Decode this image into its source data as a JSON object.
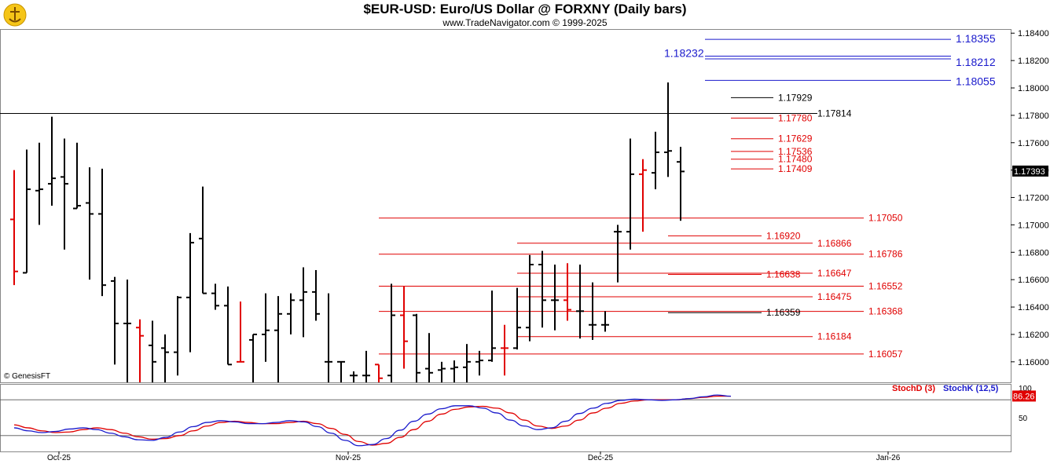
{
  "header": {
    "title": "$EUR-USD:  Euro/US Dollar @ FORXNY  (Daily bars)",
    "subtitle": "www.TradeNavigator.com © 1999-2025",
    "credit": "© GenesisFT",
    "logo_icon": "trade-navigator-logo"
  },
  "colors": {
    "bar": "#000000",
    "down_bar": "#e00000",
    "level_red": "#e00000",
    "level_blue": "#1a1acc",
    "stoch_d": "#e00000",
    "stoch_k": "#1a1acc"
  },
  "chart_data": [
    {
      "type": "ohlc",
      "title": "$EUR-USD:  Euro/US Dollar @ FORXNY  (Daily bars)",
      "ylim": [
        1.1585,
        1.1843
      ],
      "y_ticks": [
        "1.18400",
        "1.18200",
        "1.18000",
        "1.17800",
        "1.17600",
        "1.17400",
        "1.17200",
        "1.17000",
        "1.16800",
        "1.16600",
        "1.16400",
        "1.16200",
        "1.16000"
      ],
      "x_ticks": [
        "Oct-25",
        "Nov-25",
        "Dec-25",
        "Jan-26"
      ],
      "last_price": "1.17393",
      "bars": [
        {
          "o": 1.1704,
          "h": 1.174,
          "l": 1.1656,
          "c": 1.1666,
          "dir": "down"
        },
        {
          "o": 1.1665,
          "h": 1.1755,
          "l": 1.1665,
          "c": 1.1726,
          "dir": "up"
        },
        {
          "o": 1.1725,
          "h": 1.176,
          "l": 1.17,
          "c": 1.1726,
          "dir": "up"
        },
        {
          "o": 1.173,
          "h": 1.1779,
          "l": 1.1714,
          "c": 1.1734,
          "dir": "up"
        },
        {
          "o": 1.1735,
          "h": 1.1763,
          "l": 1.1682,
          "c": 1.173,
          "dir": "up"
        },
        {
          "o": 1.1712,
          "h": 1.176,
          "l": 1.1712,
          "c": 1.1714,
          "dir": "up"
        },
        {
          "o": 1.1716,
          "h": 1.1742,
          "l": 1.166,
          "c": 1.1708,
          "dir": "up"
        },
        {
          "o": 1.1708,
          "h": 1.1741,
          "l": 1.1648,
          "c": 1.1656,
          "dir": "up"
        },
        {
          "o": 1.1659,
          "h": 1.1662,
          "l": 1.1598,
          "c": 1.1628,
          "dir": "up"
        },
        {
          "o": 1.1628,
          "h": 1.166,
          "l": 1.1585,
          "c": 1.1628,
          "dir": "up"
        },
        {
          "o": 1.1625,
          "h": 1.1631,
          "l": 1.1585,
          "c": 1.1619,
          "dir": "down"
        },
        {
          "o": 1.1612,
          "h": 1.163,
          "l": 1.1585,
          "c": 1.16,
          "dir": "up"
        },
        {
          "o": 1.161,
          "h": 1.162,
          "l": 1.1585,
          "c": 1.1607,
          "dir": "up"
        },
        {
          "o": 1.1607,
          "h": 1.1648,
          "l": 1.159,
          "c": 1.1647,
          "dir": "up"
        },
        {
          "o": 1.1647,
          "h": 1.1694,
          "l": 1.1607,
          "c": 1.1687,
          "dir": "up"
        },
        {
          "o": 1.169,
          "h": 1.1728,
          "l": 1.165,
          "c": 1.165,
          "dir": "up"
        },
        {
          "o": 1.165,
          "h": 1.1657,
          "l": 1.1638,
          "c": 1.1641,
          "dir": "up"
        },
        {
          "o": 1.1641,
          "h": 1.1655,
          "l": 1.1598,
          "c": 1.1598,
          "dir": "up"
        },
        {
          "o": 1.16,
          "h": 1.1644,
          "l": 1.16,
          "c": 1.16,
          "dir": "down"
        },
        {
          "o": 1.1616,
          "h": 1.162,
          "l": 1.1585,
          "c": 1.162,
          "dir": "up"
        },
        {
          "o": 1.162,
          "h": 1.165,
          "l": 1.16,
          "c": 1.1623,
          "dir": "up"
        },
        {
          "o": 1.1623,
          "h": 1.1648,
          "l": 1.1585,
          "c": 1.1635,
          "dir": "up"
        },
        {
          "o": 1.1635,
          "h": 1.165,
          "l": 1.162,
          "c": 1.1645,
          "dir": "up"
        },
        {
          "o": 1.1645,
          "h": 1.1669,
          "l": 1.1618,
          "c": 1.1651,
          "dir": "up"
        },
        {
          "o": 1.1651,
          "h": 1.1667,
          "l": 1.163,
          "c": 1.1635,
          "dir": "up"
        },
        {
          "o": 1.16,
          "h": 1.165,
          "l": 1.1585,
          "c": 1.16,
          "dir": "up"
        },
        {
          "o": 1.16,
          "h": 1.16,
          "l": 1.1585,
          "c": 1.16,
          "dir": "up"
        },
        {
          "o": 1.159,
          "h": 1.1593,
          "l": 1.1585,
          "c": 1.159,
          "dir": "up"
        },
        {
          "o": 1.159,
          "h": 1.1608,
          "l": 1.1585,
          "c": 1.159,
          "dir": "up"
        },
        {
          "o": 1.1598,
          "h": 1.1598,
          "l": 1.1585,
          "c": 1.1588,
          "dir": "down"
        },
        {
          "o": 1.159,
          "h": 1.1657,
          "l": 1.1585,
          "c": 1.1634,
          "dir": "up"
        },
        {
          "o": 1.1634,
          "h": 1.1655,
          "l": 1.1595,
          "c": 1.1615,
          "dir": "down"
        },
        {
          "o": 1.1634,
          "h": 1.1635,
          "l": 1.1585,
          "c": 1.1592,
          "dir": "up"
        },
        {
          "o": 1.1595,
          "h": 1.1621,
          "l": 1.1585,
          "c": 1.1592,
          "dir": "up"
        },
        {
          "o": 1.1594,
          "h": 1.16,
          "l": 1.1585,
          "c": 1.1595,
          "dir": "up"
        },
        {
          "o": 1.1595,
          "h": 1.1601,
          "l": 1.1585,
          "c": 1.1596,
          "dir": "up"
        },
        {
          "o": 1.1596,
          "h": 1.1613,
          "l": 1.1585,
          "c": 1.16,
          "dir": "up"
        },
        {
          "o": 1.16,
          "h": 1.1608,
          "l": 1.159,
          "c": 1.1601,
          "dir": "up"
        },
        {
          "o": 1.1601,
          "h": 1.1652,
          "l": 1.16,
          "c": 1.161,
          "dir": "up"
        },
        {
          "o": 1.161,
          "h": 1.1627,
          "l": 1.159,
          "c": 1.161,
          "dir": "down"
        },
        {
          "o": 1.161,
          "h": 1.1654,
          "l": 1.1609,
          "c": 1.1625,
          "dir": "up"
        },
        {
          "o": 1.1625,
          "h": 1.1678,
          "l": 1.1615,
          "c": 1.1671,
          "dir": "up"
        },
        {
          "o": 1.1671,
          "h": 1.1681,
          "l": 1.1625,
          "c": 1.1645,
          "dir": "up"
        },
        {
          "o": 1.1645,
          "h": 1.1671,
          "l": 1.1623,
          "c": 1.1645,
          "dir": "up"
        },
        {
          "o": 1.1645,
          "h": 1.1672,
          "l": 1.163,
          "c": 1.1638,
          "dir": "down"
        },
        {
          "o": 1.1637,
          "h": 1.1671,
          "l": 1.1617,
          "c": 1.1637,
          "dir": "up"
        },
        {
          "o": 1.1627,
          "h": 1.1658,
          "l": 1.1616,
          "c": 1.1627,
          "dir": "up"
        },
        {
          "o": 1.1627,
          "h": 1.1637,
          "l": 1.1622,
          "c": 1.1627,
          "dir": "up"
        },
        {
          "o": 1.1695,
          "h": 1.17,
          "l": 1.1658,
          "c": 1.1695,
          "dir": "up"
        },
        {
          "o": 1.1695,
          "h": 1.1763,
          "l": 1.1682,
          "c": 1.1737,
          "dir": "up"
        },
        {
          "o": 1.1737,
          "h": 1.1748,
          "l": 1.1695,
          "c": 1.174,
          "dir": "down"
        },
        {
          "o": 1.1738,
          "h": 1.1768,
          "l": 1.1726,
          "c": 1.1753,
          "dir": "up"
        },
        {
          "o": 1.1753,
          "h": 1.1804,
          "l": 1.1735,
          "c": 1.1754,
          "dir": "up"
        },
        {
          "o": 1.1746,
          "h": 1.1757,
          "l": 1.1703,
          "c": 1.1739,
          "dir": "up"
        }
      ],
      "levels": [
        {
          "value": 1.18355,
          "label": "1.18355",
          "color": "blue"
        },
        {
          "value": 1.18232,
          "label": "1.18232",
          "color": "blue"
        },
        {
          "value": 1.18212,
          "label": "1.18212",
          "color": "blue"
        },
        {
          "value": 1.18055,
          "label": "1.18055",
          "color": "blue"
        },
        {
          "value": 1.17929,
          "label": "1.17929",
          "color": "black"
        },
        {
          "value": 1.17814,
          "label": "1.17814",
          "color": "black"
        },
        {
          "value": 1.1778,
          "label": "1.17780",
          "color": "red"
        },
        {
          "value": 1.17629,
          "label": "1.17629",
          "color": "red"
        },
        {
          "value": 1.17536,
          "label": "1.17536",
          "color": "red"
        },
        {
          "value": 1.1748,
          "label": "1.17480",
          "color": "red"
        },
        {
          "value": 1.17409,
          "label": "1.17409",
          "color": "red"
        },
        {
          "value": 1.1705,
          "label": "1.17050",
          "color": "red"
        },
        {
          "value": 1.1692,
          "label": "1.16920",
          "color": "red"
        },
        {
          "value": 1.16866,
          "label": "1.16866",
          "color": "red"
        },
        {
          "value": 1.16786,
          "label": "1.16786",
          "color": "red"
        },
        {
          "value": 1.16638,
          "label": "1.16638",
          "color": "red"
        },
        {
          "value": 1.16647,
          "label": "1.16647",
          "color": "red"
        },
        {
          "value": 1.16552,
          "label": "1.16552",
          "color": "red"
        },
        {
          "value": 1.16475,
          "label": "1.16475",
          "color": "red"
        },
        {
          "value": 1.16368,
          "label": "1.16368",
          "color": "red"
        },
        {
          "value": 1.16359,
          "label": "1.16359",
          "color": "black"
        },
        {
          "value": 1.16184,
          "label": "1.16184",
          "color": "red"
        },
        {
          "value": 1.16057,
          "label": "1.16057",
          "color": "red"
        }
      ]
    },
    {
      "type": "line",
      "legend": [
        "StochD (3)",
        "StochK (12,5)"
      ],
      "ylim": [
        0,
        100
      ],
      "y_ticks": [
        "100",
        "50"
      ],
      "last_value": "86.26",
      "series": [
        {
          "name": "StochD (3)",
          "values": [
            38,
            33,
            28,
            25,
            26,
            30,
            33,
            30,
            24,
            18,
            14,
            15,
            20,
            28,
            36,
            42,
            44,
            42,
            40,
            40,
            42,
            44,
            40,
            32,
            22,
            10,
            4,
            7,
            17,
            30,
            44,
            56,
            64,
            68,
            69,
            66,
            58,
            46,
            36,
            32,
            36,
            46,
            58,
            66,
            74,
            78,
            80,
            80,
            80,
            82,
            84,
            86,
            86
          ]
        },
        {
          "name": "StochK (12,5)",
          "values": [
            33,
            28,
            25,
            27,
            31,
            33,
            30,
            24,
            18,
            13,
            12,
            17,
            26,
            35,
            42,
            45,
            43,
            40,
            40,
            42,
            45,
            43,
            35,
            24,
            12,
            3,
            5,
            15,
            29,
            44,
            56,
            65,
            70,
            70,
            66,
            58,
            46,
            36,
            30,
            33,
            44,
            57,
            66,
            74,
            79,
            81,
            80,
            79,
            80,
            82,
            85,
            88,
            86
          ]
        }
      ]
    }
  ]
}
